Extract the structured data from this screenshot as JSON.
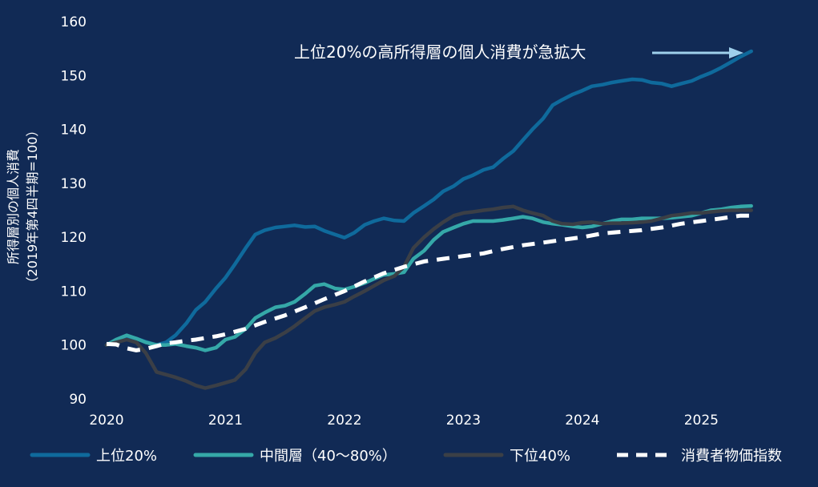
{
  "chart_data": {
    "type": "line",
    "ylabel_line1": "所得層別の個人消費",
    "ylabel_line2": "（2019年第4四半期=100）",
    "ylim": [
      90,
      160
    ],
    "yticks": [
      90,
      100,
      110,
      120,
      130,
      140,
      150,
      160
    ],
    "xlim": [
      2020,
      2025.55
    ],
    "xticks": [
      "2020",
      "2021",
      "2022",
      "2023",
      "2024",
      "2025"
    ],
    "annotation": "上位20%の高所得層の個人消費が急拡大",
    "colors": {
      "top20": "#0f6a9c",
      "middle": "#35a8a8",
      "bottom40": "#3b3f46",
      "cpi": "#ffffff",
      "arrow": "#9fd0ec"
    },
    "series": [
      {
        "key": "top20",
        "name": "上位20%",
        "x": [
          2020.0,
          2020.08,
          2020.17,
          2020.25,
          2020.33,
          2020.42,
          2020.5,
          2020.58,
          2020.67,
          2020.75,
          2020.83,
          2020.92,
          2021.0,
          2021.08,
          2021.17,
          2021.25,
          2021.33,
          2021.42,
          2021.5,
          2021.58,
          2021.67,
          2021.75,
          2021.83,
          2021.92,
          2022.0,
          2022.08,
          2022.17,
          2022.25,
          2022.33,
          2022.42,
          2022.5,
          2022.58,
          2022.67,
          2022.75,
          2022.83,
          2022.92,
          2023.0,
          2023.08,
          2023.17,
          2023.25,
          2023.33,
          2023.42,
          2023.5,
          2023.58,
          2023.67,
          2023.75,
          2023.83,
          2023.92,
          2024.0,
          2024.08,
          2024.17,
          2024.25,
          2024.33,
          2024.42,
          2024.5,
          2024.58,
          2024.67,
          2024.75,
          2024.83,
          2024.92,
          2025.0,
          2025.08,
          2025.17,
          2025.25,
          2025.33,
          2025.42
        ],
        "values": [
          100.0,
          100.5,
          101.5,
          101.2,
          100.6,
          100.0,
          100.5,
          101.8,
          104.0,
          106.5,
          108.0,
          110.5,
          112.5,
          115.0,
          118.0,
          120.5,
          121.3,
          121.8,
          122.0,
          122.2,
          121.9,
          122.0,
          121.2,
          120.5,
          119.9,
          120.8,
          122.3,
          123.0,
          123.5,
          123.1,
          123.0,
          124.5,
          125.8,
          127.0,
          128.5,
          129.5,
          130.8,
          131.5,
          132.5,
          133.0,
          134.5,
          136.0,
          138.0,
          140.0,
          142.0,
          144.5,
          145.5,
          146.5,
          147.2,
          148.0,
          148.3,
          148.7,
          149.0,
          149.3,
          149.2,
          148.7,
          148.5,
          148.0,
          148.5,
          149.0,
          149.8,
          150.5,
          151.5,
          152.5,
          153.5,
          154.5
        ]
      },
      {
        "key": "middle",
        "name": "中間層（40～80%）",
        "x": [
          2020.0,
          2020.08,
          2020.17,
          2020.25,
          2020.33,
          2020.42,
          2020.5,
          2020.58,
          2020.67,
          2020.75,
          2020.83,
          2020.92,
          2021.0,
          2021.08,
          2021.17,
          2021.25,
          2021.33,
          2021.42,
          2021.5,
          2021.58,
          2021.67,
          2021.75,
          2021.83,
          2021.92,
          2022.0,
          2022.08,
          2022.17,
          2022.25,
          2022.33,
          2022.42,
          2022.5,
          2022.58,
          2022.67,
          2022.75,
          2022.83,
          2022.92,
          2023.0,
          2023.08,
          2023.17,
          2023.25,
          2023.33,
          2023.42,
          2023.5,
          2023.58,
          2023.67,
          2023.75,
          2023.83,
          2023.92,
          2024.0,
          2024.08,
          2024.17,
          2024.25,
          2024.33,
          2024.42,
          2024.5,
          2024.58,
          2024.67,
          2024.75,
          2024.83,
          2024.92,
          2025.0,
          2025.08,
          2025.17,
          2025.25,
          2025.33,
          2025.42
        ],
        "values": [
          100.0,
          101.0,
          101.8,
          101.2,
          100.5,
          100.0,
          100.0,
          100.2,
          99.8,
          99.5,
          99.0,
          99.5,
          101.0,
          101.5,
          103.0,
          105.0,
          106.0,
          107.0,
          107.3,
          108.0,
          109.5,
          111.0,
          111.3,
          110.5,
          110.3,
          110.8,
          111.5,
          112.3,
          113.0,
          113.2,
          113.5,
          116.0,
          117.5,
          119.5,
          121.0,
          121.8,
          122.5,
          123.0,
          123.0,
          123.0,
          123.2,
          123.5,
          123.8,
          123.5,
          122.8,
          122.5,
          122.3,
          122.0,
          121.8,
          122.0,
          122.5,
          123.0,
          123.3,
          123.3,
          123.5,
          123.5,
          123.5,
          123.6,
          123.8,
          124.0,
          124.5,
          125.0,
          125.2,
          125.5,
          125.7,
          125.8
        ]
      },
      {
        "key": "bottom40",
        "name": "下位40%",
        "x": [
          2020.0,
          2020.08,
          2020.17,
          2020.25,
          2020.33,
          2020.42,
          2020.5,
          2020.58,
          2020.67,
          2020.75,
          2020.83,
          2020.92,
          2021.0,
          2021.08,
          2021.17,
          2021.25,
          2021.33,
          2021.42,
          2021.5,
          2021.58,
          2021.67,
          2021.75,
          2021.83,
          2021.92,
          2022.0,
          2022.08,
          2022.17,
          2022.25,
          2022.33,
          2022.42,
          2022.5,
          2022.58,
          2022.67,
          2022.75,
          2022.83,
          2022.92,
          2023.0,
          2023.08,
          2023.17,
          2023.25,
          2023.33,
          2023.42,
          2023.5,
          2023.58,
          2023.67,
          2023.75,
          2023.83,
          2023.92,
          2024.0,
          2024.08,
          2024.17,
          2024.25,
          2024.33,
          2024.42,
          2024.5,
          2024.58,
          2024.67,
          2024.75,
          2024.83,
          2024.92,
          2025.0,
          2025.08,
          2025.17,
          2025.25,
          2025.33,
          2025.42
        ],
        "values": [
          100.0,
          100.5,
          101.0,
          100.5,
          98.5,
          95.0,
          94.5,
          94.0,
          93.3,
          92.5,
          92.0,
          92.5,
          93.0,
          93.5,
          95.5,
          98.5,
          100.5,
          101.3,
          102.3,
          103.5,
          105.0,
          106.3,
          107.0,
          107.5,
          108.0,
          109.0,
          110.0,
          111.0,
          112.0,
          112.8,
          114.5,
          118.0,
          120.0,
          121.5,
          122.8,
          124.0,
          124.5,
          124.7,
          125.0,
          125.2,
          125.5,
          125.7,
          125.0,
          124.5,
          124.0,
          123.0,
          122.5,
          122.4,
          122.7,
          122.8,
          122.5,
          122.6,
          122.6,
          122.7,
          122.8,
          123.0,
          123.5,
          124.0,
          124.2,
          124.5,
          124.5,
          124.7,
          124.9,
          125.0,
          125.0,
          125.0
        ]
      },
      {
        "key": "cpi",
        "name": "消費者物価指数",
        "x": [
          2020.0,
          2020.08,
          2020.17,
          2020.25,
          2020.33,
          2020.42,
          2020.5,
          2020.58,
          2020.67,
          2020.75,
          2020.83,
          2020.92,
          2021.0,
          2021.17,
          2021.33,
          2021.5,
          2021.67,
          2021.83,
          2022.0,
          2022.17,
          2022.33,
          2022.5,
          2022.67,
          2022.83,
          2023.0,
          2023.17,
          2023.33,
          2023.5,
          2023.67,
          2023.83,
          2024.0,
          2024.17,
          2024.33,
          2024.5,
          2024.67,
          2024.83,
          2025.0,
          2025.17,
          2025.33,
          2025.42
        ],
        "values": [
          100.2,
          100.1,
          99.4,
          99.0,
          99.3,
          99.8,
          100.3,
          100.5,
          100.8,
          101.0,
          101.3,
          101.6,
          102.0,
          103.0,
          104.3,
          105.5,
          107.0,
          108.5,
          110.0,
          111.8,
          113.3,
          114.5,
          115.5,
          116.0,
          116.5,
          117.0,
          117.8,
          118.5,
          119.0,
          119.5,
          120.0,
          120.7,
          121.0,
          121.3,
          121.8,
          122.5,
          123.0,
          123.5,
          124.0,
          124.0
        ]
      }
    ]
  }
}
